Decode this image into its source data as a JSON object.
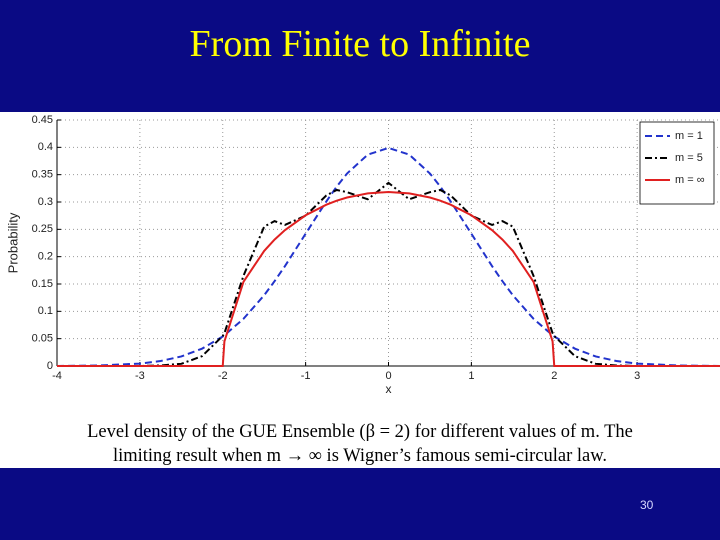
{
  "title": "From Finite to Infinite",
  "caption": [
    "Level density of the GUE Ensemble (β = 2) for different values of m.  The",
    "limiting result when m → ∞ is Wigner’s famous semi-circular law."
  ],
  "page_number": "30",
  "chart_data": {
    "type": "line",
    "xlabel": "x",
    "ylabel": "Probability",
    "xlim": [
      -4,
      4
    ],
    "xticks": [
      -4,
      -3,
      -2,
      -1,
      0,
      1,
      2,
      3
    ],
    "ylim": [
      0,
      0.45
    ],
    "yticks": [
      0,
      0.05,
      0.1,
      0.15,
      0.2,
      0.25,
      0.3,
      0.35,
      0.4,
      0.45
    ],
    "grid": true,
    "legend": "upper right",
    "x": [
      -4,
      -3.5,
      -3,
      -2.75,
      -2.5,
      -2.25,
      -2,
      -1.98,
      -1.75,
      -1.5,
      -1.375,
      -1.25,
      -1,
      -0.75,
      -0.625,
      -0.5,
      -0.25,
      0,
      0.25,
      0.5,
      0.625,
      0.75,
      1,
      1.25,
      1.375,
      1.5,
      1.75,
      1.98,
      2,
      2.25,
      2.5,
      2.75,
      3,
      3.5,
      4
    ],
    "series": [
      {
        "name": "m = 1",
        "color": "#2233cc",
        "dash": "dashed",
        "values": [
          0.0001,
          0.0009,
          0.0044,
          0.0091,
          0.0175,
          0.0317,
          0.054,
          0.0562,
          0.0863,
          0.1295,
          0.1551,
          0.1826,
          0.242,
          0.3011,
          0.3282,
          0.3521,
          0.3867,
          0.3989,
          0.3867,
          0.3521,
          0.3282,
          0.3011,
          0.242,
          0.1826,
          0.1551,
          0.1295,
          0.0863,
          0.0562,
          0.054,
          0.0317,
          0.0175,
          0.0091,
          0.0044,
          0.0009,
          0.0001
        ]
      },
      {
        "name": "m = 5",
        "color": "#000000",
        "dash": "dashdot",
        "values": [
          0,
          0,
          0,
          0.001,
          0.004,
          0.018,
          0.055,
          0.06,
          0.165,
          0.255,
          0.265,
          0.258,
          0.275,
          0.312,
          0.322,
          0.318,
          0.305,
          0.335,
          0.305,
          0.318,
          0.322,
          0.312,
          0.275,
          0.258,
          0.265,
          0.255,
          0.165,
          0.06,
          0.055,
          0.018,
          0.004,
          0.001,
          0,
          0,
          0
        ]
      },
      {
        "name": "m = ∞",
        "color": "#e02020",
        "dash": "solid",
        "values": [
          0,
          0,
          0,
          0,
          0,
          0,
          0,
          0.0449,
          0.1541,
          0.2105,
          0.2312,
          0.2485,
          0.2757,
          0.2951,
          0.3024,
          0.3082,
          0.3158,
          0.3183,
          0.3158,
          0.3082,
          0.3024,
          0.2951,
          0.2757,
          0.2485,
          0.2312,
          0.2105,
          0.1541,
          0.0449,
          0,
          0,
          0,
          0,
          0,
          0,
          0
        ]
      }
    ]
  }
}
